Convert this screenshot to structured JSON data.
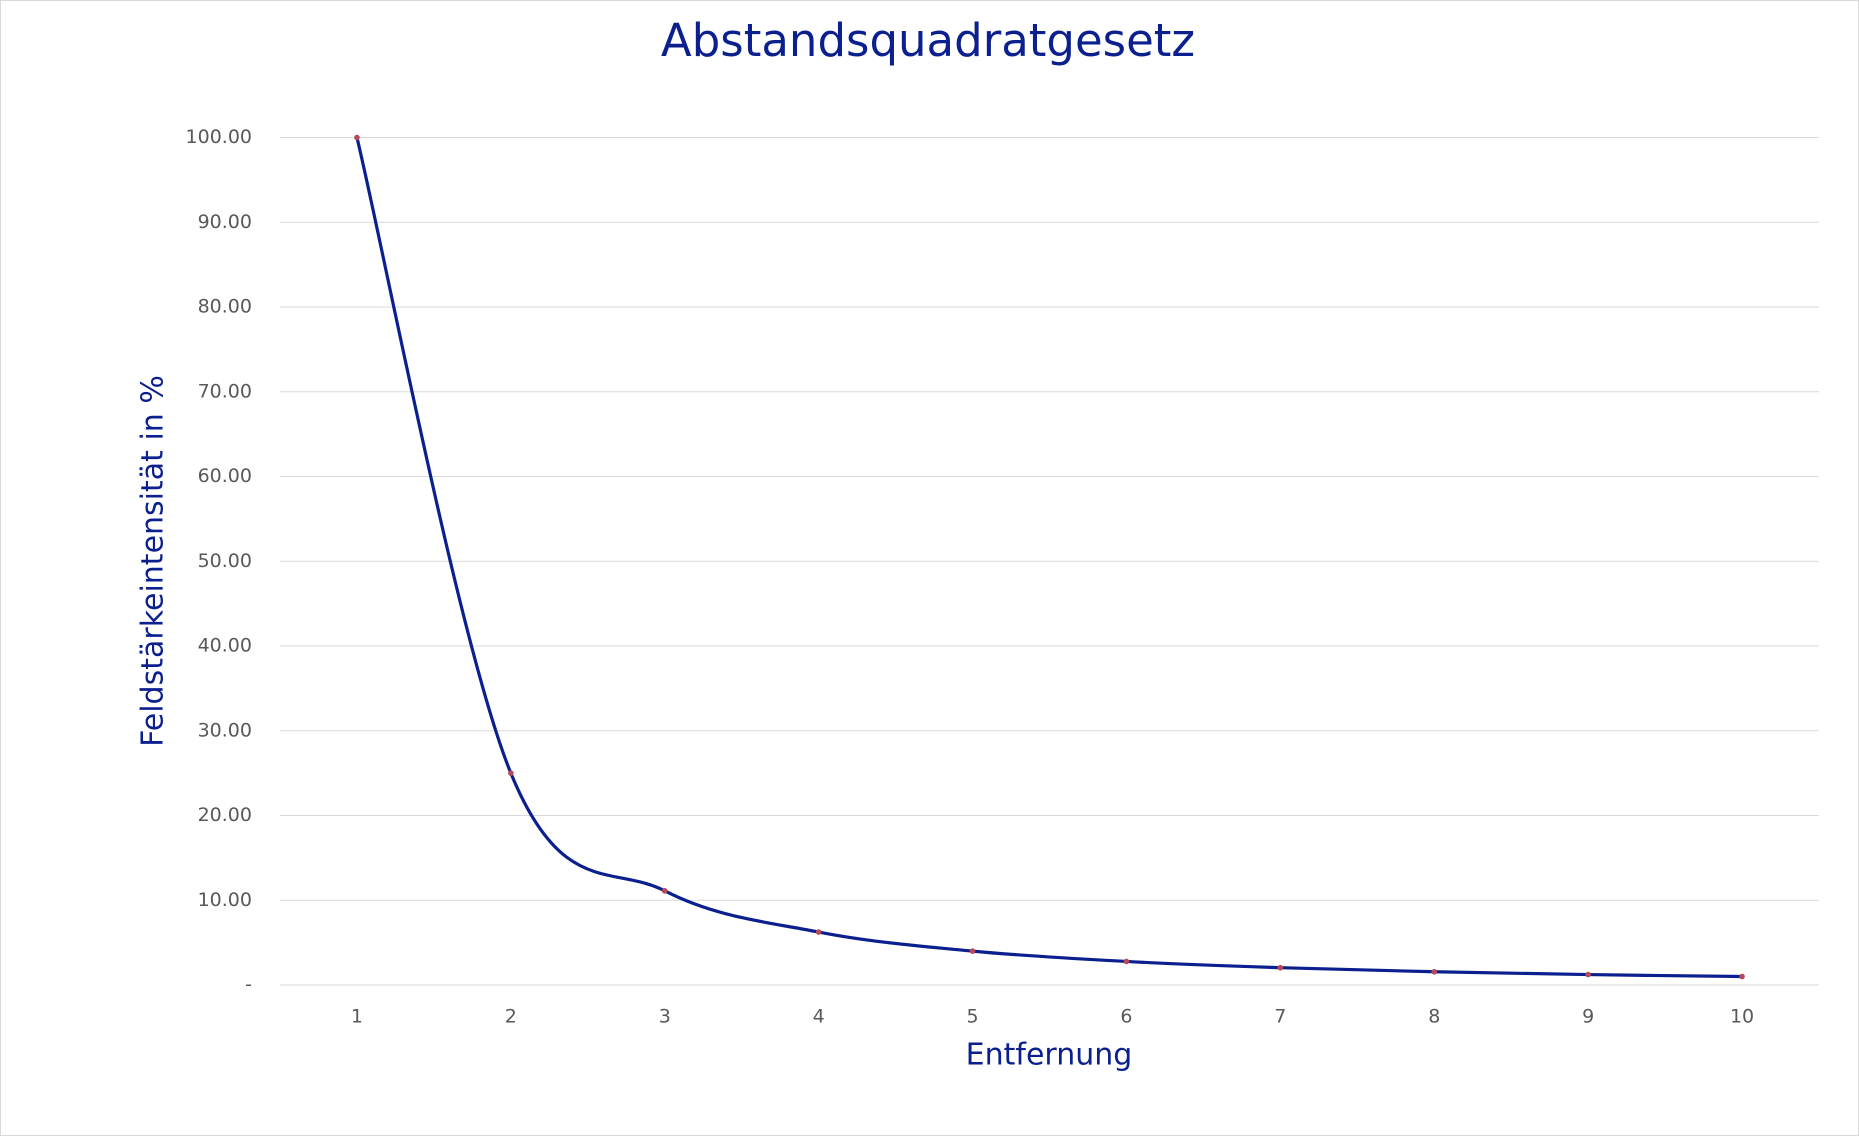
{
  "chart_data": {
    "type": "line",
    "title": "Abstandsquadratgesetz",
    "x_label": "Entfernung",
    "y_label": "Feldstärkeintensität in %",
    "categories": [
      "1",
      "2",
      "3",
      "4",
      "5",
      "6",
      "7",
      "8",
      "9",
      "10"
    ],
    "values": [
      100,
      25,
      11.11,
      6.25,
      4,
      2.78,
      2.04,
      1.56,
      1.23,
      1
    ],
    "color": "#0b1f8f",
    "marker_color": "#b5495b",
    "smooth": true,
    "grid": true,
    "ylim": [
      0,
      100
    ],
    "yticks": [
      {
        "value": 0,
        "label": "-"
      },
      {
        "value": 10,
        "label": "10.00"
      },
      {
        "value": 20,
        "label": "20.00"
      },
      {
        "value": 30,
        "label": "30.00"
      },
      {
        "value": 40,
        "label": "40.00"
      },
      {
        "value": 50,
        "label": "50.00"
      },
      {
        "value": 60,
        "label": "60.00"
      },
      {
        "value": 70,
        "label": "70.00"
      },
      {
        "value": 80,
        "label": "80.00"
      },
      {
        "value": 90,
        "label": "90.00"
      },
      {
        "value": 100,
        "label": "100.00"
      }
    ]
  }
}
